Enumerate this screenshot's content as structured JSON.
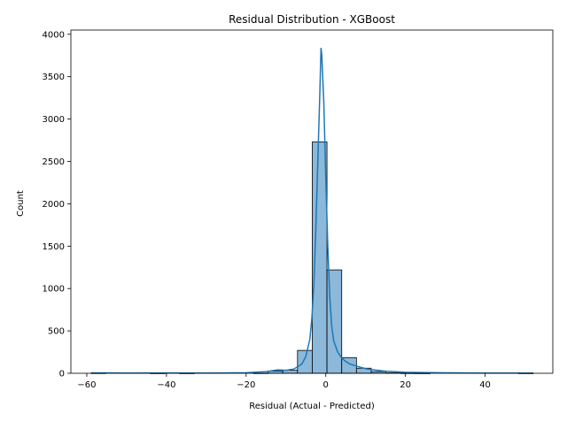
{
  "chart_data": {
    "type": "bar",
    "title": "Residual Distribution - XGBoost",
    "xlabel": "Residual (Actual - Predicted)",
    "ylabel": "Count",
    "xlim": [
      -64,
      57
    ],
    "ylim": [
      0,
      4050
    ],
    "xticks": [
      -60,
      -40,
      -20,
      0,
      20,
      40
    ],
    "xtick_labels": [
      "−60",
      "−40",
      "−20",
      "0",
      "20",
      "40"
    ],
    "yticks": [
      0,
      500,
      1000,
      1500,
      2000,
      2500,
      3000,
      3500,
      4000
    ],
    "ytick_labels": [
      "0",
      "500",
      "1000",
      "1500",
      "2000",
      "2500",
      "3000",
      "3500",
      "4000"
    ],
    "grid": false,
    "bin_edges": [
      -58.9,
      -55.2,
      -51.5,
      -47.8,
      -44.1,
      -40.4,
      -36.7,
      -33.0,
      -29.3,
      -25.6,
      -21.9,
      -18.2,
      -14.5,
      -10.8,
      -7.1,
      -3.4,
      0.3,
      4.0,
      7.7,
      11.4,
      15.1,
      18.8,
      22.5,
      26.2,
      29.9,
      33.6,
      37.3,
      41.0,
      44.7,
      48.4,
      52.1
    ],
    "values": [
      2,
      0,
      0,
      0,
      1,
      0,
      1,
      0,
      0,
      0,
      0,
      2,
      25,
      35,
      270,
      2730,
      1220,
      185,
      60,
      20,
      5,
      2,
      1,
      0,
      0,
      0,
      0,
      0,
      0,
      1
    ],
    "kde": {
      "x": [
        -58.9,
        -50,
        -40,
        -30,
        -20,
        -15,
        -12,
        -10,
        -8,
        -6,
        -5,
        -4,
        -3.5,
        -3,
        -2.5,
        -2,
        -1.5,
        -1.2,
        -1,
        -0.5,
        0,
        0.5,
        1,
        1.5,
        2,
        3,
        4,
        5,
        6,
        8,
        10,
        12,
        15,
        20,
        30,
        40,
        52.1
      ],
      "y": [
        5,
        3,
        4,
        3,
        6,
        20,
        40,
        35,
        50,
        110,
        200,
        400,
        650,
        1050,
        1700,
        2500,
        3300,
        3840,
        3750,
        3200,
        2300,
        1500,
        900,
        550,
        380,
        250,
        180,
        140,
        110,
        80,
        55,
        40,
        25,
        12,
        5,
        3,
        2
      ]
    },
    "colors": {
      "bar_fill": "#8cb8da",
      "bar_edge": "#000000",
      "kde_line": "#1f77b4",
      "axes": "#000000"
    }
  }
}
